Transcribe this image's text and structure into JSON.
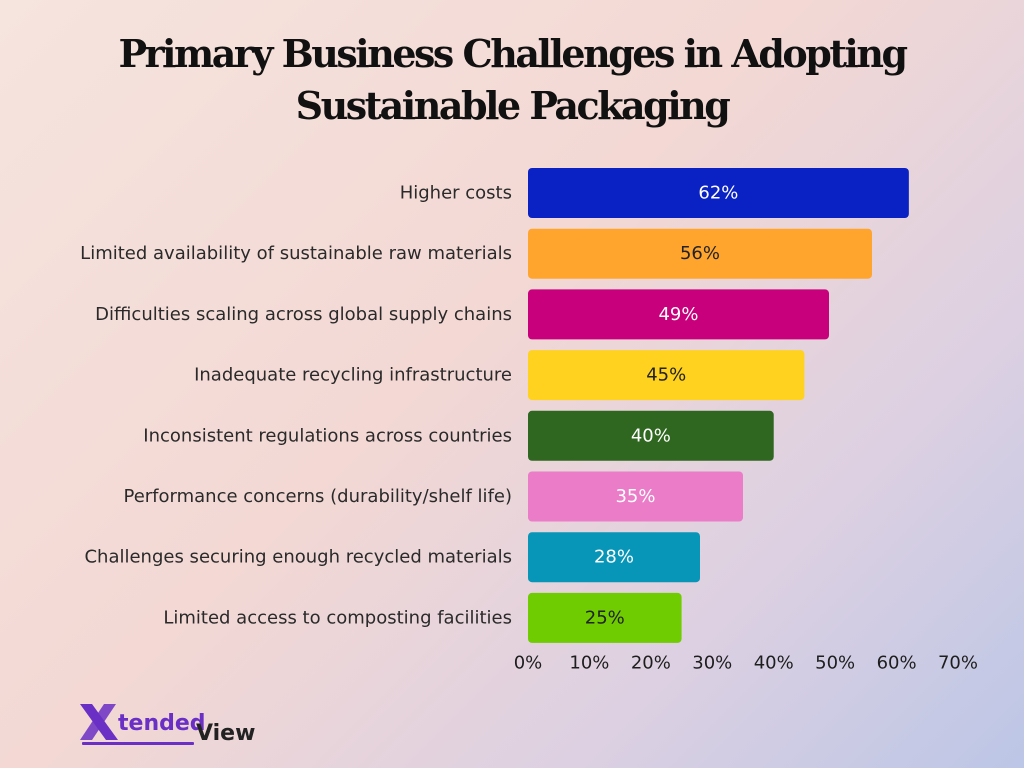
{
  "title": {
    "line1": "Primary Business Challenges in Adopting",
    "line2": "Sustainable Packaging"
  },
  "chart_data": {
    "type": "bar",
    "orientation": "horizontal",
    "categories": [
      "Higher costs",
      "Limited availability of sustainable raw materials",
      "Difficulties scaling across global supply chains",
      "Inadequate recycling infrastructure",
      "Inconsistent regulations across countries",
      "Performance concerns (durability/shelf life)",
      "Challenges securing enough recycled materials",
      "Limited access to composting facilities"
    ],
    "values": [
      62,
      56,
      49,
      45,
      40,
      35,
      28,
      25
    ],
    "data_labels": [
      "62%",
      "56%",
      "49%",
      "45%",
      "40%",
      "35%",
      "28%",
      "25%"
    ],
    "bar_colors": [
      "#0a22c4",
      "#ffa52e",
      "#c9007c",
      "#ffd21f",
      "#2f6620",
      "#ea7cc8",
      "#0796b8",
      "#6fcc00"
    ],
    "label_colors": [
      "#ffffff",
      "#222222",
      "#ffffff",
      "#222222",
      "#ffffff",
      "#ffffff",
      "#ffffff",
      "#222222"
    ],
    "xlim": [
      0,
      70
    ],
    "xticks": [
      0,
      10,
      20,
      30,
      40,
      50,
      60,
      70
    ],
    "xtick_labels": [
      "0%",
      "10%",
      "20%",
      "30%",
      "40%",
      "50%",
      "60%",
      "70%"
    ],
    "grid": false,
    "legend": false
  },
  "logo": {
    "text_part1": "tended",
    "text_part2": "View",
    "mark_color": "#6a2fc4",
    "text_color_1": "#6a2fc4",
    "text_color_2": "#222222"
  }
}
